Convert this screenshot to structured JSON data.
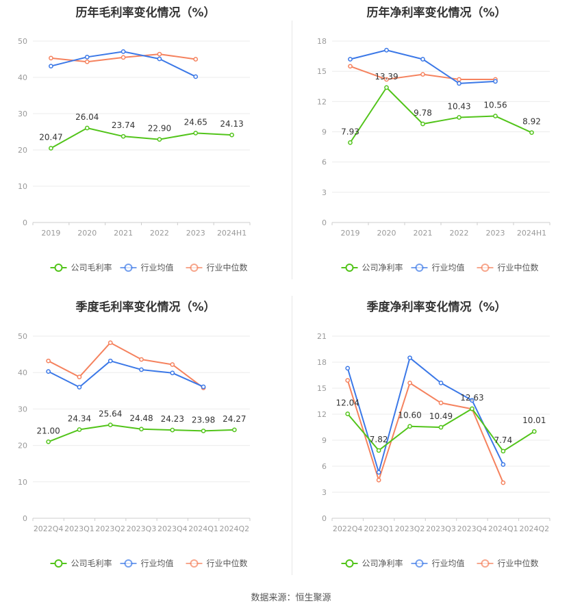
{
  "footer": "数据来源：恒生聚源",
  "colors": {
    "company": "#52c41a",
    "industry_avg": "#3b78e7",
    "industry_median": "#f5825e"
  },
  "chart_data": [
    {
      "type": "line",
      "title": "历年毛利率变化情况（%）",
      "categories": [
        "2019",
        "2020",
        "2021",
        "2022",
        "2023",
        "2024H1"
      ],
      "ylim": [
        0,
        50
      ],
      "yticks": [
        0,
        10,
        20,
        30,
        40,
        50
      ],
      "grid": true,
      "legend_position": "bottom",
      "series": [
        {
          "name": "公司毛利率",
          "color": "#52c41a",
          "labels": true,
          "values": [
            20.47,
            26.04,
            23.74,
            22.9,
            24.65,
            24.13
          ]
        },
        {
          "name": "行业均值",
          "color": "#3b78e7",
          "labels": false,
          "values": [
            43.1,
            45.6,
            47.1,
            45.1,
            40.2,
            null
          ]
        },
        {
          "name": "行业中位数",
          "color": "#f5825e",
          "labels": false,
          "values": [
            45.3,
            44.3,
            45.5,
            46.4,
            45.0,
            null
          ]
        }
      ]
    },
    {
      "type": "line",
      "title": "历年净利率变化情况（%）",
      "categories": [
        "2019",
        "2020",
        "2021",
        "2022",
        "2023",
        "2024H1"
      ],
      "ylim": [
        0,
        18
      ],
      "yticks": [
        0,
        3,
        6,
        9,
        12,
        15,
        18
      ],
      "grid": true,
      "legend_position": "bottom",
      "series": [
        {
          "name": "公司净利率",
          "color": "#52c41a",
          "labels": true,
          "values": [
            7.93,
            13.39,
            9.78,
            10.43,
            10.56,
            8.92
          ]
        },
        {
          "name": "行业均值",
          "color": "#3b78e7",
          "labels": false,
          "values": [
            16.2,
            17.1,
            16.2,
            13.8,
            14.0,
            null
          ]
        },
        {
          "name": "行业中位数",
          "color": "#f5825e",
          "labels": false,
          "values": [
            15.5,
            14.2,
            14.7,
            14.2,
            14.2,
            null
          ]
        }
      ]
    },
    {
      "type": "line",
      "title": "季度毛利率变化情况（%）",
      "categories": [
        "2022Q4",
        "2023Q1",
        "2023Q2",
        "2023Q3",
        "2023Q4",
        "2024Q1",
        "2024Q2"
      ],
      "ylim": [
        0,
        50
      ],
      "yticks": [
        0,
        10,
        20,
        30,
        40,
        50
      ],
      "grid": true,
      "legend_position": "bottom",
      "series": [
        {
          "name": "公司毛利率",
          "color": "#52c41a",
          "labels": true,
          "values": [
            21.0,
            24.34,
            25.64,
            24.48,
            24.23,
            23.98,
            24.27
          ]
        },
        {
          "name": "行业均值",
          "color": "#3b78e7",
          "labels": false,
          "values": [
            40.3,
            36.0,
            43.2,
            40.8,
            39.9,
            36.1,
            null
          ]
        },
        {
          "name": "行业中位数",
          "color": "#f5825e",
          "labels": false,
          "values": [
            43.2,
            38.8,
            48.2,
            43.6,
            42.2,
            35.8,
            null
          ]
        }
      ]
    },
    {
      "type": "line",
      "title": "季度净利率变化情况（%）",
      "categories": [
        "2022Q4",
        "2023Q1",
        "2023Q2",
        "2023Q3",
        "2023Q4",
        "2024Q1",
        "2024Q2"
      ],
      "ylim": [
        0,
        21
      ],
      "yticks": [
        0,
        3,
        6,
        9,
        12,
        15,
        18,
        21
      ],
      "grid": true,
      "legend_position": "bottom",
      "series": [
        {
          "name": "公司净利率",
          "color": "#52c41a",
          "labels": true,
          "values": [
            12.04,
            7.82,
            10.6,
            10.49,
            12.63,
            7.74,
            10.01
          ]
        },
        {
          "name": "行业均值",
          "color": "#3b78e7",
          "labels": false,
          "values": [
            17.3,
            5.3,
            18.5,
            15.6,
            13.6,
            6.2,
            null
          ]
        },
        {
          "name": "行业中位数",
          "color": "#f5825e",
          "labels": false,
          "values": [
            15.9,
            4.4,
            15.6,
            13.3,
            12.6,
            4.1,
            null
          ]
        }
      ]
    }
  ]
}
